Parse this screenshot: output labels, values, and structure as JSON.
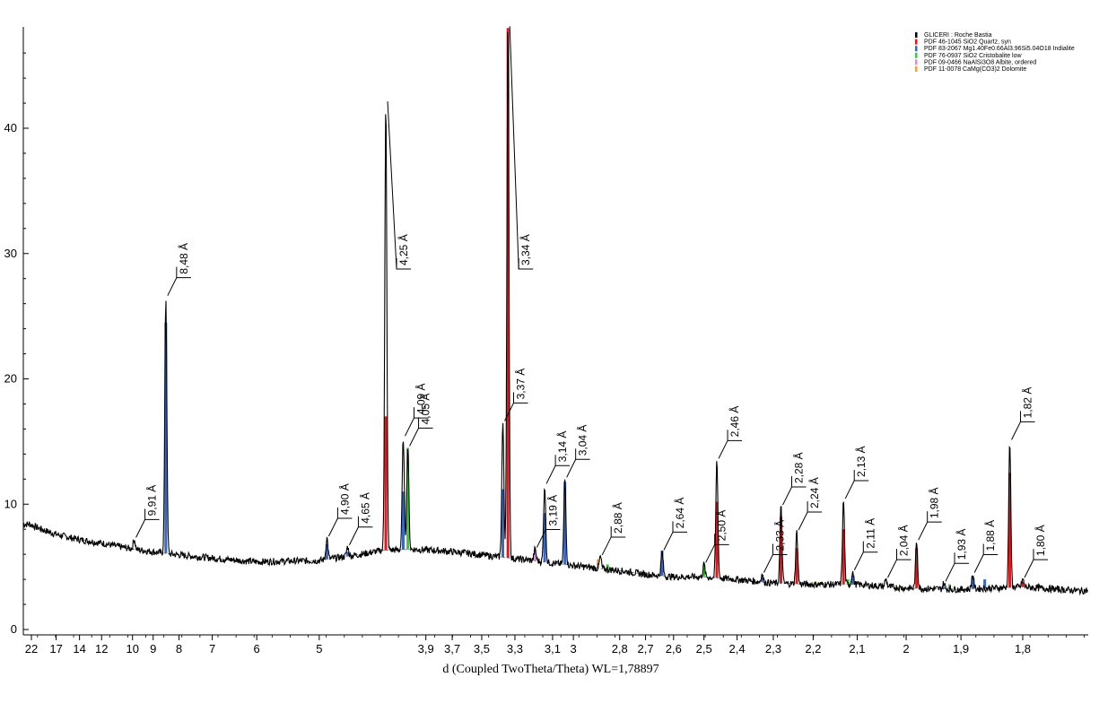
{
  "chart_data": {
    "type": "line",
    "xlabel": "d (Coupled TwoTheta/Theta) WL=1,78897",
    "ylabel": "",
    "x_tick_labels": [
      {
        "d": 22,
        "label": "22"
      },
      {
        "d": 17,
        "label": "17"
      },
      {
        "d": 14,
        "label": "14"
      },
      {
        "d": 12,
        "label": "12"
      },
      {
        "d": 10,
        "label": "10"
      },
      {
        "d": 9,
        "label": "9"
      },
      {
        "d": 8,
        "label": "8"
      },
      {
        "d": 7,
        "label": "7"
      },
      {
        "d": 6,
        "label": "6"
      },
      {
        "d": 5,
        "label": "5"
      },
      {
        "d": 3.9,
        "label": "3,9"
      },
      {
        "d": 3.7,
        "label": "3,7"
      },
      {
        "d": 3.5,
        "label": "3,5"
      },
      {
        "d": 3.3,
        "label": "3,3"
      },
      {
        "d": 3.1,
        "label": "3,1"
      },
      {
        "d": 3.0,
        "label": "3"
      },
      {
        "d": 2.8,
        "label": "2,8"
      },
      {
        "d": 2.7,
        "label": "2,7"
      },
      {
        "d": 2.6,
        "label": "2,6"
      },
      {
        "d": 2.5,
        "label": "2,5"
      },
      {
        "d": 2.4,
        "label": "2,4"
      },
      {
        "d": 2.3,
        "label": "2,3"
      },
      {
        "d": 2.2,
        "label": "2,2"
      },
      {
        "d": 2.1,
        "label": "2,1"
      },
      {
        "d": 2.0,
        "label": "2"
      },
      {
        "d": 1.9,
        "label": "1,9"
      },
      {
        "d": 1.8,
        "label": "1,8"
      }
    ],
    "y_ticks": [
      {
        "value": 0,
        "label": "0"
      },
      {
        "value": 10,
        "label": "10"
      },
      {
        "value": 20,
        "label": "20"
      },
      {
        "value": 30,
        "label": "30"
      },
      {
        "value": 40,
        "label": "40"
      }
    ],
    "ylim": [
      0,
      47.5
    ],
    "background_points": [
      [
        22.3,
        8.4
      ],
      [
        17,
        7.6
      ],
      [
        12,
        6.9
      ],
      [
        9,
        6.2
      ],
      [
        8,
        5.95
      ],
      [
        7,
        5.7
      ],
      [
        6,
        5.4
      ],
      [
        5,
        5.5
      ],
      [
        4.5,
        6.0
      ],
      [
        4.3,
        6.3
      ],
      [
        4.0,
        6.4
      ],
      [
        3.8,
        6.3
      ],
      [
        3.6,
        6.1
      ],
      [
        3.4,
        5.8
      ],
      [
        3.2,
        5.5
      ],
      [
        3.0,
        5.1
      ],
      [
        2.8,
        4.7
      ],
      [
        2.7,
        4.4
      ],
      [
        2.6,
        4.2
      ],
      [
        2.5,
        4.2
      ],
      [
        2.4,
        4.0
      ],
      [
        2.3,
        3.7
      ],
      [
        2.2,
        3.6
      ],
      [
        2.1,
        3.6
      ],
      [
        2.0,
        3.3
      ],
      [
        1.9,
        3.2
      ],
      [
        1.8,
        3.4
      ],
      [
        1.72,
        3.1
      ]
    ],
    "measured_peaks": [
      {
        "d": 9.91,
        "intensity": 7.2,
        "label": "9,91 Å"
      },
      {
        "d": 8.48,
        "intensity": 26.5,
        "label": "8,48 Å"
      },
      {
        "d": 4.9,
        "intensity": 7.3,
        "label": "4,90 Å"
      },
      {
        "d": 4.65,
        "intensity": 6.6,
        "label": "4,65 Å"
      },
      {
        "d": 4.25,
        "intensity": 42.0,
        "label": "4,25 Å"
      },
      {
        "d": 4.09,
        "intensity": 15.3,
        "label": "4,09 Å"
      },
      {
        "d": 4.05,
        "intensity": 14.5,
        "label": "4,05 Å"
      },
      {
        "d": 3.37,
        "intensity": 16.5,
        "label": "3,37 Å"
      },
      {
        "d": 3.34,
        "intensity": 48,
        "label": "3,34 Å"
      },
      {
        "d": 3.19,
        "intensity": 6.4,
        "label": "3,19 Å"
      },
      {
        "d": 3.14,
        "intensity": 11.5,
        "label": "3,14 Å"
      },
      {
        "d": 3.04,
        "intensity": 12.0,
        "label": "3,04 Å"
      },
      {
        "d": 2.88,
        "intensity": 5.8,
        "label": "2,88 Å"
      },
      {
        "d": 2.64,
        "intensity": 6.2,
        "label": "2,64 Å"
      },
      {
        "d": 2.5,
        "intensity": 5.2,
        "label": "2,50 Å"
      },
      {
        "d": 2.46,
        "intensity": 13.5,
        "label": "2,46 Å"
      },
      {
        "d": 2.33,
        "intensity": 4.4,
        "label": "2,33 Å"
      },
      {
        "d": 2.28,
        "intensity": 9.8,
        "label": "2,28 Å"
      },
      {
        "d": 2.24,
        "intensity": 7.8,
        "label": "2,24 Å"
      },
      {
        "d": 2.13,
        "intensity": 10.3,
        "label": "2,13 Å"
      },
      {
        "d": 2.11,
        "intensity": 4.6,
        "label": "2,11 Å"
      },
      {
        "d": 2.04,
        "intensity": 4.0,
        "label": "2,04 Å"
      },
      {
        "d": 1.98,
        "intensity": 7.0,
        "label": "1,98 Å"
      },
      {
        "d": 1.93,
        "intensity": 3.7,
        "label": "1,93 Å"
      },
      {
        "d": 1.88,
        "intensity": 4.4,
        "label": "1,88 Å"
      },
      {
        "d": 1.82,
        "intensity": 15.0,
        "label": "1,82 Å"
      },
      {
        "d": 1.8,
        "intensity": 4.0,
        "label": "1,80 Å"
      }
    ],
    "series": [
      {
        "name": "GLICERI : Roche Bastia",
        "color": "#000000",
        "kind": "measured"
      },
      {
        "name": "PDF 46-1045 SiO2 Quartz, syn",
        "color": "#e8151b",
        "lines": [
          [
            4.25,
            17.0
          ],
          [
            3.34,
            48
          ],
          [
            2.46,
            10.2
          ],
          [
            2.28,
            9.0
          ],
          [
            2.24,
            6.5
          ],
          [
            2.13,
            8.0
          ],
          [
            1.98,
            6.5
          ],
          [
            1.82,
            12.5
          ],
          [
            1.8,
            3.8
          ]
        ]
      },
      {
        "name": "PDF 83-2067 Mg1.40Fe0.66Al3.96Si5.04O18 Indialite",
        "color": "#3567c8",
        "lines": [
          [
            8.48,
            24.5
          ],
          [
            4.9,
            6.8
          ],
          [
            4.65,
            6.2
          ],
          [
            4.09,
            11.0
          ],
          [
            3.37,
            11.2
          ],
          [
            3.14,
            9.3
          ],
          [
            3.04,
            11.8
          ],
          [
            2.64,
            6.3
          ],
          [
            2.46,
            4.2
          ],
          [
            2.33,
            4.2
          ],
          [
            2.11,
            4.3
          ],
          [
            1.93,
            3.4
          ],
          [
            1.88,
            4.3
          ],
          [
            1.86,
            4.0
          ]
        ]
      },
      {
        "name": "PDF 76-0937 SiO2 Cristobalite low",
        "color": "#3ec83a",
        "lines": [
          [
            4.05,
            14.5
          ],
          [
            2.85,
            5.2
          ],
          [
            2.5,
            5.2
          ],
          [
            2.12,
            4.0
          ],
          [
            1.92,
            3.6
          ]
        ]
      },
      {
        "name": "PDF 09-0466 NaAlSi3O8 Albite, ordered",
        "color": "#e08ad6",
        "lines": [
          [
            6.4,
            5.4
          ],
          [
            3.78,
            6.2
          ],
          [
            3.67,
            6.0
          ],
          [
            3.19,
            6.4
          ],
          [
            2.95,
            5.0
          ],
          [
            2.93,
            5.2
          ]
        ]
      },
      {
        "name": "PDF 11-0078 CaMg(CO3)2 Dolomite",
        "color": "#f5a236",
        "lines": [
          [
            2.89,
            5.6
          ],
          [
            2.19,
            3.7
          ],
          [
            2.01,
            3.5
          ],
          [
            1.79,
            3.5
          ]
        ]
      }
    ],
    "legend_placement": "top-right"
  }
}
